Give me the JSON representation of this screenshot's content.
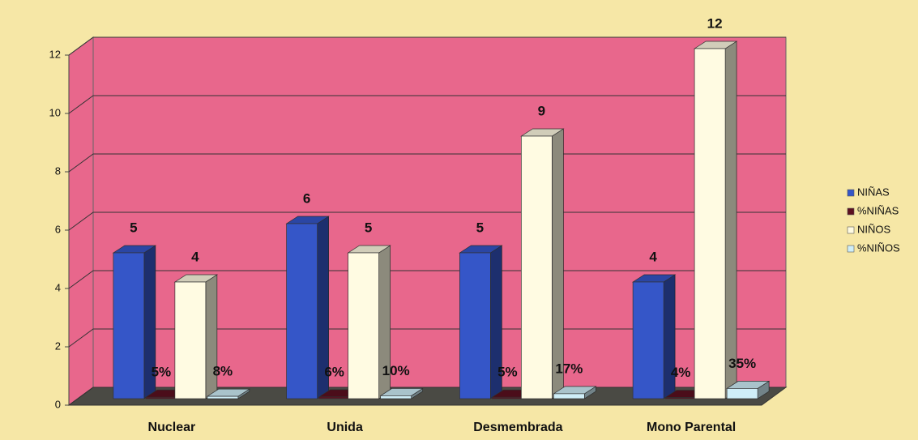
{
  "chart_data": {
    "type": "bar3d",
    "categories": [
      "Nuclear",
      "Unida",
      "Desmembrada",
      "Mono Parental"
    ],
    "series": [
      {
        "name": "NIÑAS",
        "color": "#3556c8",
        "values": [
          5,
          6,
          5,
          4
        ]
      },
      {
        "name": "%NIÑAS",
        "color": "#5c1020",
        "values": [
          0.05,
          0.06,
          0.05,
          0.04
        ],
        "value_labels": [
          "5%",
          "6%",
          "5%",
          "4%"
        ]
      },
      {
        "name": "NIÑOS",
        "color": "#fffbe2",
        "values": [
          4,
          5,
          9,
          12
        ]
      },
      {
        "name": "%NIÑOS",
        "color": "#cfeef8",
        "values": [
          0.08,
          0.1,
          0.17,
          0.35
        ],
        "value_labels": [
          "8%",
          "10%",
          "17%",
          "35%"
        ]
      }
    ],
    "ylim": [
      0,
      12
    ],
    "yticks": [
      0,
      2,
      4,
      6,
      8,
      10,
      12
    ],
    "grid": true,
    "legend": "right"
  }
}
